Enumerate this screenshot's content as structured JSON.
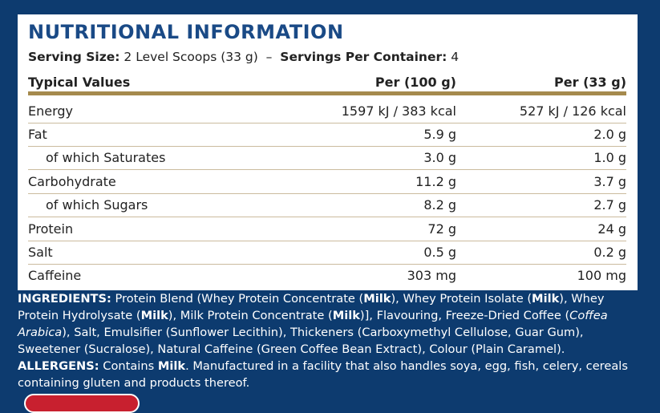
{
  "header": {
    "title": "NUTRITIONAL INFORMATION",
    "serving_label": "Serving Size:",
    "serving_value": "2 Level Scoops (33 g)",
    "separator": "–",
    "servings_label": "Servings Per Container:",
    "servings_value": "4"
  },
  "table": {
    "columns": [
      "Typical Values",
      "Per (100 g)",
      "Per (33 g)"
    ],
    "rows": [
      [
        "Energy",
        "1597 kJ / 383 kcal",
        "527 kJ / 126 kcal"
      ],
      [
        "Fat",
        "5.9 g",
        "2.0 g"
      ],
      [
        "of which Saturates",
        "3.0 g",
        "1.0 g"
      ],
      [
        "Carbohydrate",
        "11.2 g",
        "3.7 g"
      ],
      [
        "of which Sugars",
        "8.2 g",
        "2.7 g"
      ],
      [
        "Protein",
        "72 g",
        "24 g"
      ],
      [
        "Salt",
        "0.5 g",
        "0.2 g"
      ],
      [
        "Caffeine",
        "303 mg",
        "100 mg"
      ]
    ]
  },
  "ingredients": {
    "runs": [
      "INGREDIENTS:",
      " Protein Blend (Whey Protein Concentrate (",
      "Milk",
      "), Whey Protein Isolate (",
      "Milk",
      "), Whey Protein Hydrolysate (",
      "Milk",
      "), Milk Protein Concentrate (",
      "Milk",
      ")], Flavouring, Freeze-Dried Coffee (",
      "Coffea Arabica",
      "), Salt, Emulsifier (Sunflower Lecithin), Thickeners (Carboxymethyl Cellulose, Guar Gum), Sweetener (Sucralose), Natural Caffeine (Green Coffee Bean Extract), Colour (Plain Caramel). ",
      "ALLERGENS:",
      " Contains ",
      "Milk",
      ". Manufactured in a facility that also handles soya, egg, fish, celery, cereals containing gluten and products thereof."
    ]
  }
}
